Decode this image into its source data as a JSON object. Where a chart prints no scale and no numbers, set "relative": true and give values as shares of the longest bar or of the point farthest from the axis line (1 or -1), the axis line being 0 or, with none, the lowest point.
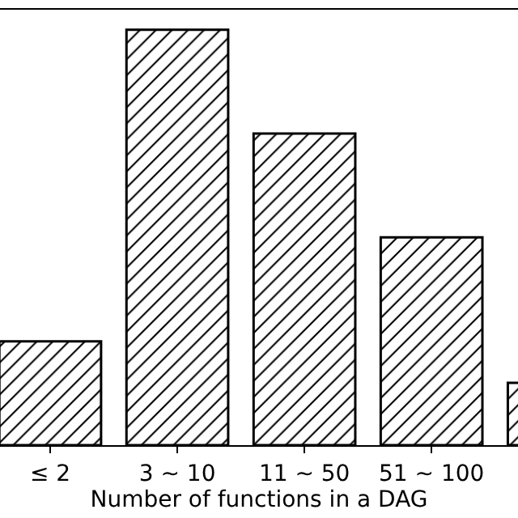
{
  "chart_data": {
    "type": "bar",
    "relative": true,
    "xlabel": "Number of functions in a DAG",
    "categories": [
      "≤ 2",
      "3 ~ 10",
      "11 ~ 50",
      "51 ~ 100",
      null
    ],
    "values": [
      0.25,
      1,
      0.75,
      0.5,
      0.15
    ],
    "color": "#000000"
  }
}
